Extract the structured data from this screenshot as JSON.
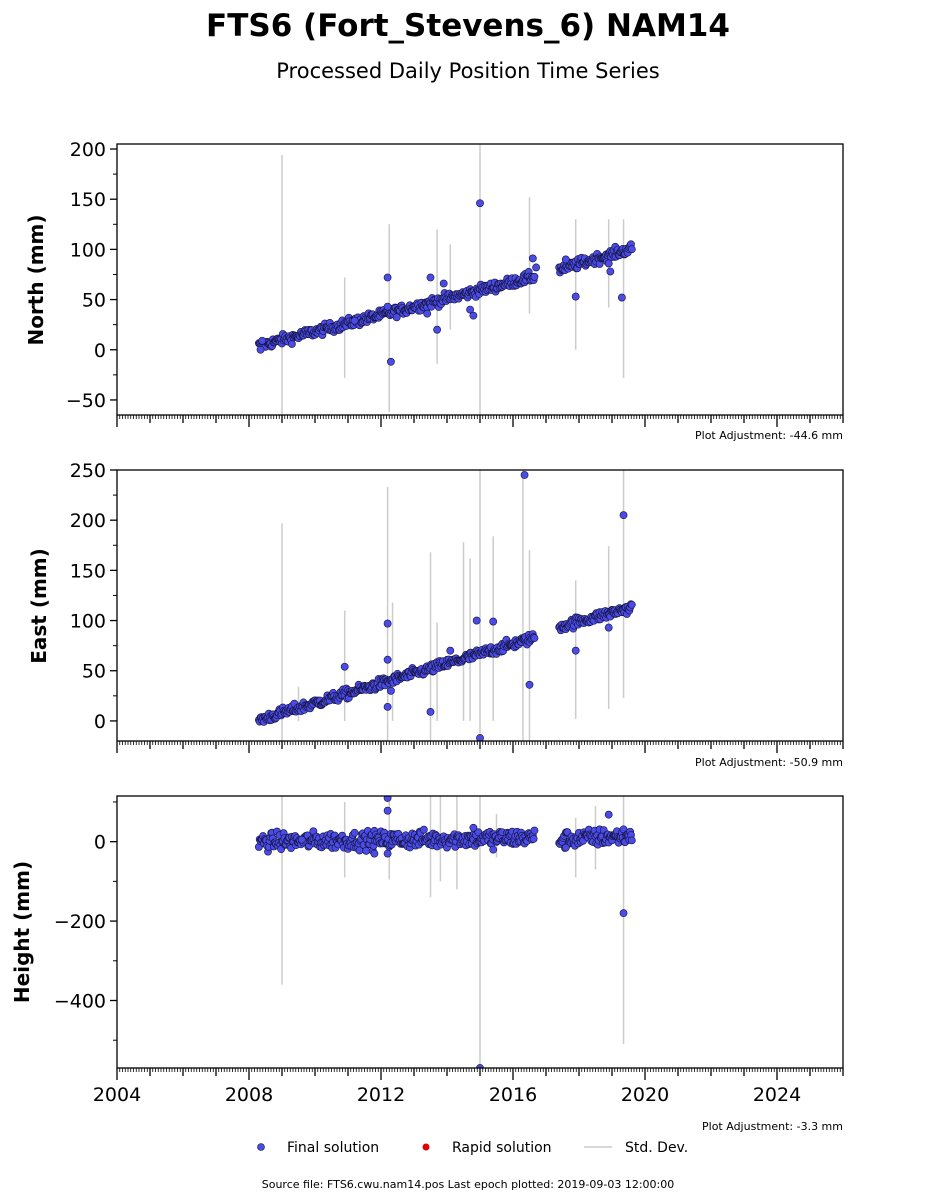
{
  "header": {
    "title": "FTS6 (Fort_Stevens_6) NAM14",
    "subtitle": "Processed Daily Position Time Series"
  },
  "footer": {
    "source": "Source file: FTS6.cwu.nam14.pos  Last epoch plotted: 2019-09-03 12:00:00"
  },
  "legend": {
    "final": "Final solution",
    "rapid": "Rapid solution",
    "stddev": "Std. Dev."
  },
  "colors": {
    "final_fill": "#4b4be8",
    "final_edge": "#111133",
    "rapid": "#dd0000",
    "stddev": "#cccccc"
  },
  "chart_data": [
    {
      "type": "scatter",
      "ylabel": "North (mm)",
      "adjustment": "Plot Adjustment: -44.6 mm",
      "xlim": [
        2004,
        2026
      ],
      "ylim": [
        -65,
        205
      ],
      "yticks": [
        -50,
        0,
        50,
        100,
        150,
        200
      ],
      "ytick_labels": [
        "−50",
        "0",
        "50",
        "100",
        "150",
        "200"
      ],
      "trend": [
        [
          2008.3,
          4
        ],
        [
          2016.65,
          73
        ],
        [
          2017.4,
          80
        ],
        [
          2019.6,
          101
        ]
      ],
      "noise": 2.5,
      "outliers": [
        [
          2008.4,
          9
        ],
        [
          2008.35,
          0
        ],
        [
          2011.2,
          29
        ],
        [
          2012.2,
          72
        ],
        [
          2012.2,
          43
        ],
        [
          2012.3,
          -12
        ],
        [
          2013.5,
          72
        ],
        [
          2013.7,
          20
        ],
        [
          2013.4,
          36
        ],
        [
          2013.9,
          66
        ],
        [
          2014.7,
          40
        ],
        [
          2014.8,
          34
        ],
        [
          2015.0,
          146
        ],
        [
          2016.6,
          91
        ],
        [
          2016.7,
          82
        ],
        [
          2017.6,
          90
        ],
        [
          2017.9,
          53
        ],
        [
          2018.9,
          86
        ],
        [
          2018.95,
          78
        ],
        [
          2019.3,
          52
        ]
      ],
      "stddev_bars": [
        [
          2009.0,
          -65,
          194
        ],
        [
          2010.9,
          -28,
          72
        ],
        [
          2012.25,
          -62,
          125
        ],
        [
          2013.7,
          -14,
          120
        ],
        [
          2014.1,
          20,
          105
        ],
        [
          2015.0,
          -65,
          205
        ],
        [
          2016.5,
          36,
          152
        ],
        [
          2017.9,
          0,
          130
        ],
        [
          2018.9,
          42,
          130
        ],
        [
          2019.35,
          -28,
          130
        ]
      ]
    },
    {
      "type": "scatter",
      "ylabel": "East (mm)",
      "adjustment": "Plot Adjustment: -50.9 mm",
      "xlim": [
        2004,
        2026
      ],
      "ylim": [
        -20,
        250
      ],
      "yticks": [
        0,
        50,
        100,
        150,
        200,
        250
      ],
      "ytick_labels": [
        "0",
        "50",
        "100",
        "150",
        "200",
        "250"
      ],
      "trend": [
        [
          2008.3,
          1
        ],
        [
          2016.65,
          83
        ],
        [
          2017.4,
          94
        ],
        [
          2019.6,
          113
        ]
      ],
      "noise": 2.5,
      "outliers": [
        [
          2010.9,
          54
        ],
        [
          2012.2,
          97
        ],
        [
          2012.2,
          61
        ],
        [
          2012.2,
          14
        ],
        [
          2012.3,
          30
        ],
        [
          2013.5,
          9
        ],
        [
          2014.1,
          70
        ],
        [
          2014.9,
          100
        ],
        [
          2015.0,
          -17
        ],
        [
          2015.4,
          99
        ],
        [
          2016.35,
          245
        ],
        [
          2016.5,
          36
        ],
        [
          2017.9,
          70
        ],
        [
          2018.9,
          93
        ],
        [
          2019.35,
          205
        ]
      ],
      "stddev_bars": [
        [
          2009.0,
          -20,
          197
        ],
        [
          2009.5,
          0,
          34
        ],
        [
          2010.9,
          0,
          110
        ],
        [
          2012.2,
          -20,
          233
        ],
        [
          2012.35,
          0,
          118
        ],
        [
          2013.5,
          -20,
          168
        ],
        [
          2013.7,
          0,
          98
        ],
        [
          2014.5,
          0,
          178
        ],
        [
          2014.7,
          0,
          162
        ],
        [
          2015.0,
          -20,
          250
        ],
        [
          2015.4,
          0,
          184
        ],
        [
          2016.3,
          -20,
          250
        ],
        [
          2016.5,
          -20,
          170
        ],
        [
          2017.9,
          2,
          140
        ],
        [
          2018.9,
          12,
          174
        ],
        [
          2019.35,
          23,
          250
        ]
      ]
    },
    {
      "type": "scatter",
      "ylabel": "Height (mm)",
      "adjustment": "Plot Adjustment: -3.3 mm",
      "xlim": [
        2004,
        2026
      ],
      "ylim": [
        -570,
        115
      ],
      "yticks": [
        -400,
        -200,
        0
      ],
      "ytick_labels": [
        "−400",
        "−200",
        "0"
      ],
      "xticks": [
        2004,
        2008,
        2012,
        2016,
        2020,
        2024
      ],
      "xtick_labels": [
        "2004",
        "2008",
        "2012",
        "2016",
        "2020",
        "2024"
      ],
      "trend": [
        [
          2008.3,
          0
        ],
        [
          2016.65,
          10
        ],
        [
          2017.4,
          5
        ],
        [
          2019.6,
          15
        ]
      ],
      "noise": 11,
      "outliers": [
        [
          2009.6,
          5
        ],
        [
          2011.8,
          -30
        ],
        [
          2012.2,
          110
        ],
        [
          2012.2,
          78
        ],
        [
          2012.2,
          -30
        ],
        [
          2014.8,
          35
        ],
        [
          2015.0,
          -570
        ],
        [
          2015.4,
          -20
        ],
        [
          2017.6,
          -15
        ],
        [
          2018.9,
          68
        ],
        [
          2019.35,
          -180
        ]
      ],
      "stddev_bars": [
        [
          2009.0,
          -360,
          115
        ],
        [
          2010.9,
          -90,
          100
        ],
        [
          2012.25,
          -95,
          115
        ],
        [
          2013.5,
          -140,
          115
        ],
        [
          2013.8,
          -100,
          115
        ],
        [
          2014.3,
          -120,
          115
        ],
        [
          2015.0,
          -570,
          115
        ],
        [
          2015.5,
          -40,
          70
        ],
        [
          2017.9,
          -90,
          60
        ],
        [
          2018.5,
          -70,
          90
        ],
        [
          2019.35,
          -510,
          115
        ]
      ]
    }
  ]
}
